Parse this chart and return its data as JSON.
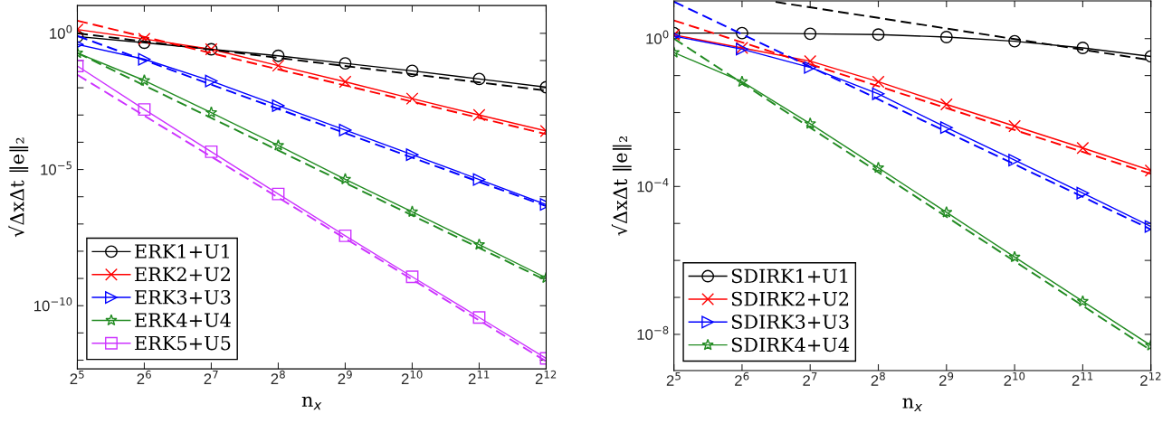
{
  "chart_data": [
    {
      "type": "line",
      "xlabel": "n$_{x}$",
      "ylabel": "√ΔxΔt ‖e‖₂",
      "log": "xy",
      "grid": false,
      "legend": "bottom left",
      "line_style": "solid",
      "x": [
        32,
        64,
        128,
        256,
        512,
        1024,
        2048,
        4096
      ],
      "xlim": [
        32,
        4096
      ],
      "xticks": [
        {
          "value": 32,
          "label": "2$^{5}$"
        },
        {
          "value": 64,
          "label": "2$^{6}$"
        },
        {
          "value": 128,
          "label": "2$^{7}$"
        },
        {
          "value": 256,
          "label": "2$^{8}$"
        },
        {
          "value": 512,
          "label": "2$^{9}$"
        },
        {
          "value": 1024,
          "label": "2$^{10}$"
        },
        {
          "value": 2048,
          "label": "2$^{11}$"
        },
        {
          "value": 4096,
          "label": "2$^{12}$"
        }
      ],
      "ylim": [
        4.8e-13,
        10.5
      ],
      "yticks": [
        {
          "value": 1e-12,
          "label": null
        },
        {
          "value": 1e-11,
          "label": null
        },
        {
          "value": 1e-10,
          "label": "10$^{−10}$"
        },
        {
          "value": 1e-09,
          "label": null
        },
        {
          "value": 1e-08,
          "label": null
        },
        {
          "value": 1e-07,
          "label": null
        },
        {
          "value": 1e-06,
          "label": null
        },
        {
          "value": 1e-05,
          "label": "10$^{−5}$"
        },
        {
          "value": 0.0001,
          "label": null
        },
        {
          "value": 0.001,
          "label": null
        },
        {
          "value": 0.01,
          "label": null
        },
        {
          "value": 0.1,
          "label": null
        },
        {
          "value": 1,
          "label": "10$^{0}$"
        }
      ],
      "series": [
        {
          "name": "ERK1+U1",
          "color": "#000000",
          "marker": "circle",
          "values": [
            0.76,
            0.45,
            0.26,
            0.15,
            0.079,
            0.042,
            0.021,
            0.0105
          ]
        },
        {
          "name": "ERK2+U2",
          "color": "#ff0000",
          "marker": "cross",
          "values": [
            1.38,
            0.62,
            0.26,
            0.065,
            0.0166,
            0.004,
            0.001,
            0.00026
          ]
        },
        {
          "name": "ERK3+U3",
          "color": "#0000ff",
          "marker": "triangle",
          "values": [
            0.39,
            0.112,
            0.0178,
            0.0022,
            0.00028,
            3.5e-05,
            4.3e-06,
            5.2e-07
          ]
        },
        {
          "name": "ERK4+U4",
          "color": "#228b22",
          "marker": "star",
          "values": [
            0.19,
            0.0186,
            0.00123,
            7.6e-05,
            4.4e-06,
            2.8e-07,
            1.74e-08,
            1.05e-09
          ]
        },
        {
          "name": "ERK5+U5",
          "color": "#cc33ff",
          "marker": "square",
          "values": [
            0.063,
            0.0016,
            4.5e-05,
            1.26e-06,
            3.7e-08,
            1.15e-09,
            3.7e-11,
            1.17e-12
          ]
        },
        {
          "color": "#000000",
          "marker": "none",
          "line_style": "dashed",
          "x": [
            32,
            4096
          ],
          "values": [
            1.0,
            0.0079
          ]
        },
        {
          "color": "#ff0000",
          "marker": "none",
          "line_style": "dashed",
          "x": [
            32,
            4096
          ],
          "values": [
            2.9,
            0.0002
          ]
        },
        {
          "color": "#0000ff",
          "marker": "none",
          "line_style": "dashed",
          "x": [
            32,
            4096
          ],
          "values": [
            0.8,
            4.5e-07
          ]
        },
        {
          "color": "#228b22",
          "marker": "none",
          "line_style": "dashed",
          "x": [
            32,
            4096
          ],
          "values": [
            0.19,
            8.5e-10
          ]
        },
        {
          "color": "#cc33ff",
          "marker": "none",
          "line_style": "dashed",
          "x": [
            32,
            4096
          ],
          "values": [
            0.03,
            9.1e-13
          ]
        }
      ]
    },
    {
      "type": "line",
      "xlabel": "n$_{x}$",
      "ylabel": "√ΔxΔt ‖e‖₂",
      "log": "xy",
      "grid": false,
      "legend": "bottom left",
      "line_style": "solid",
      "x": [
        32,
        64,
        128,
        256,
        512,
        1024,
        2048,
        4096
      ],
      "xlim": [
        32,
        4096
      ],
      "xticks": [
        {
          "value": 32,
          "label": "2$^{5}$"
        },
        {
          "value": 64,
          "label": "2$^{6}$"
        },
        {
          "value": 128,
          "label": "2$^{7}$"
        },
        {
          "value": 256,
          "label": "2$^{8}$"
        },
        {
          "value": 512,
          "label": "2$^{9}$"
        },
        {
          "value": 1024,
          "label": "2$^{10}$"
        },
        {
          "value": 2048,
          "label": "2$^{11}$"
        },
        {
          "value": 4096,
          "label": "2$^{12}$"
        }
      ],
      "ylim": [
        1.05e-09,
        10.5
      ],
      "yticks": [
        {
          "value": 1e-08,
          "label": "10$^{−8}$"
        },
        {
          "value": 1e-07,
          "label": null
        },
        {
          "value": 1e-06,
          "label": null
        },
        {
          "value": 1e-05,
          "label": null
        },
        {
          "value": 0.0001,
          "label": "10$^{−4}$"
        },
        {
          "value": 0.001,
          "label": null
        },
        {
          "value": 0.01,
          "label": null
        },
        {
          "value": 0.1,
          "label": null
        },
        {
          "value": 1,
          "label": "10$^{0}$"
        }
      ],
      "series": [
        {
          "name": "SDIRK1+U1",
          "color": "#000000",
          "marker": "circle",
          "values": [
            1.41,
            1.41,
            1.35,
            1.29,
            1.1,
            0.85,
            0.56,
            0.33
          ]
        },
        {
          "name": "SDIRK2+U2",
          "color": "#ff0000",
          "marker": "cross",
          "values": [
            1.26,
            0.56,
            0.245,
            0.068,
            0.0166,
            0.0043,
            0.0011,
            0.00027
          ]
        },
        {
          "name": "SDIRK3+U3",
          "color": "#0000ff",
          "marker": "triangle",
          "values": [
            1.17,
            0.52,
            0.166,
            0.032,
            0.0039,
            0.00052,
            6.6e-05,
            8.3e-06
          ]
        },
        {
          "name": "SDIRK4+U4",
          "color": "#228b22",
          "marker": "star",
          "values": [
            0.42,
            0.068,
            0.005,
            0.00032,
            2e-05,
            1.23e-06,
            7.8e-08,
            5e-09
          ]
        },
        {
          "color": "#000000",
          "marker": "none",
          "line_style": "dashed",
          "x": [
            90,
            4096
          ],
          "values": [
            9.8,
            0.26
          ]
        },
        {
          "color": "#ff0000",
          "marker": "none",
          "line_style": "dashed",
          "x": [
            32,
            4096
          ],
          "values": [
            3.1,
            0.00022
          ]
        },
        {
          "color": "#0000ff",
          "marker": "none",
          "line_style": "dashed",
          "x": [
            32,
            4096
          ],
          "values": [
            10.0,
            6.9e-06
          ]
        },
        {
          "color": "#228b22",
          "marker": "none",
          "line_style": "dashed",
          "x": [
            32,
            4096
          ],
          "values": [
            1.0,
            3.7e-09
          ]
        }
      ]
    }
  ]
}
